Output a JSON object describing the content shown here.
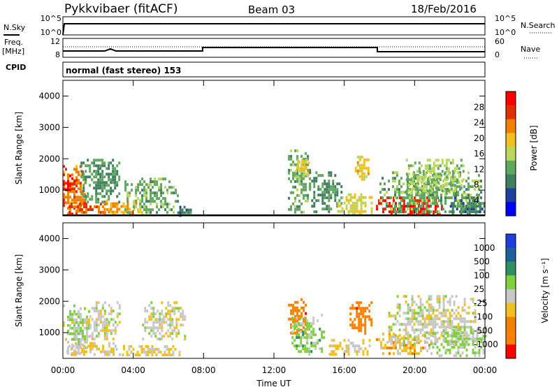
{
  "header": {
    "radar": "Pykkvibaer (fitACF)",
    "beam": "Beam 03",
    "date": "18/Feb/2016"
  },
  "noise_panel": {
    "left_label": "N.Sky",
    "right_label": "N.Search",
    "left_ticks": [
      "10^5",
      "10^0"
    ],
    "right_ticks": [
      "10^5",
      "10^0"
    ]
  },
  "freq_panel": {
    "left_label_1": "Freq.",
    "left_label_2": "[MHz]",
    "right_label": "Nave",
    "left_ticks": [
      "12",
      "8"
    ],
    "right_ticks": [
      "60",
      "0"
    ]
  },
  "cpid": {
    "label": "CPID",
    "text": "normal (fast stereo) 153"
  },
  "x_axis": {
    "label": "Time UT",
    "ticks": [
      "00:00",
      "04:00",
      "08:00",
      "12:00",
      "16:00",
      "20:00",
      "00:00"
    ]
  },
  "power_panel": {
    "ylabel": "Slant Range [km]",
    "yticks": [
      "4000",
      "3000",
      "2000",
      "1000"
    ],
    "colorbar_label": "Power [dB]",
    "colorbar_ticks": [
      "28",
      "24",
      "20",
      "16",
      "12",
      "8",
      "4"
    ]
  },
  "velocity_panel": {
    "ylabel": "Slant Range [km]",
    "yticks": [
      "4000",
      "3000",
      "2000",
      "1000"
    ],
    "colorbar_label": "Velocity [m s⁻¹]",
    "colorbar_ticks": [
      "1000",
      "500",
      "100",
      "25",
      "-25",
      "-100",
      "-500",
      "-1000"
    ]
  },
  "colors": {
    "power_scale": [
      "#0000ff",
      "#1f3f9c",
      "#3f7f5f",
      "#5fa65f",
      "#b9d65f",
      "#f0c020",
      "#f08000",
      "#e03000",
      "#ff0000"
    ],
    "velocity_scale": [
      "#1f3fdc",
      "#1f5f9c",
      "#2f8f5f",
      "#7fcf3f",
      "#c8c8c8",
      "#f0c020",
      "#f08000",
      "#ff7f00",
      "#ff0000"
    ]
  },
  "chart_data": [
    {
      "type": "heatmap",
      "name": "Power",
      "xlim": [
        0,
        24
      ],
      "ylim": [
        180,
        4500
      ],
      "zlim": [
        0,
        30
      ],
      "clusters": [
        {
          "t": [
            0.0,
            1.2
          ],
          "r": [
            200,
            1800
          ],
          "z": 22
        },
        {
          "t": [
            0.0,
            0.6
          ],
          "r": [
            900,
            1500
          ],
          "z": 28
        },
        {
          "t": [
            0.2,
            2.5
          ],
          "r": [
            300,
            600
          ],
          "z": 24
        },
        {
          "t": [
            1.0,
            3.2
          ],
          "r": [
            600,
            2000
          ],
          "z": 10
        },
        {
          "t": [
            2.2,
            4.5
          ],
          "r": [
            200,
            700
          ],
          "z": 20
        },
        {
          "t": [
            3.5,
            6.5
          ],
          "r": [
            300,
            1400
          ],
          "z": 12
        },
        {
          "t": [
            6.5,
            7.3
          ],
          "r": [
            200,
            500
          ],
          "z": 8
        },
        {
          "t": [
            12.8,
            14.0
          ],
          "r": [
            300,
            2300
          ],
          "z": 12
        },
        {
          "t": [
            13.2,
            14.0
          ],
          "r": [
            1400,
            2000
          ],
          "z": 18
        },
        {
          "t": [
            14.0,
            15.8
          ],
          "r": [
            300,
            1600
          ],
          "z": 10
        },
        {
          "t": [
            15.6,
            17.6
          ],
          "r": [
            200,
            900
          ],
          "z": 16
        },
        {
          "t": [
            16.6,
            17.4
          ],
          "r": [
            1300,
            2100
          ],
          "z": 18
        },
        {
          "t": [
            17.8,
            21.5
          ],
          "r": [
            200,
            800
          ],
          "z": 26
        },
        {
          "t": [
            18.0,
            23.8
          ],
          "r": [
            300,
            1600
          ],
          "z": 12
        },
        {
          "t": [
            19.5,
            22.8
          ],
          "r": [
            900,
            2000
          ],
          "z": 14
        },
        {
          "t": [
            22.0,
            24.0
          ],
          "r": [
            200,
            800
          ],
          "z": 8
        }
      ]
    },
    {
      "type": "heatmap",
      "name": "Velocity",
      "xlim": [
        0,
        24
      ],
      "ylim": [
        180,
        4500
      ],
      "zlim": [
        -1000,
        1000
      ],
      "clusters": [
        {
          "t": [
            0.0,
            1.5
          ],
          "r": [
            300,
            1900
          ],
          "z": 50
        },
        {
          "t": [
            0.2,
            3.5
          ],
          "r": [
            300,
            700
          ],
          "z": -150
        },
        {
          "t": [
            1.5,
            3.2
          ],
          "r": [
            800,
            2000
          ],
          "z": 0
        },
        {
          "t": [
            3.0,
            6.8
          ],
          "r": [
            300,
            600
          ],
          "z": -120
        },
        {
          "t": [
            4.5,
            7.0
          ],
          "r": [
            800,
            2000
          ],
          "z": 0
        },
        {
          "t": [
            12.8,
            13.8
          ],
          "r": [
            1000,
            2100
          ],
          "z": -600
        },
        {
          "t": [
            13.0,
            14.8
          ],
          "r": [
            300,
            1600
          ],
          "z": 200
        },
        {
          "t": [
            15.0,
            17.5
          ],
          "r": [
            300,
            800
          ],
          "z": -150
        },
        {
          "t": [
            16.3,
            17.6
          ],
          "r": [
            1000,
            2000
          ],
          "z": -600
        },
        {
          "t": [
            17.8,
            21.0
          ],
          "r": [
            300,
            1000
          ],
          "z": -200
        },
        {
          "t": [
            18.5,
            23.5
          ],
          "r": [
            600,
            2200
          ],
          "z": 0
        },
        {
          "t": [
            21.0,
            24.0
          ],
          "r": [
            300,
            1200
          ],
          "z": 150
        }
      ]
    }
  ]
}
